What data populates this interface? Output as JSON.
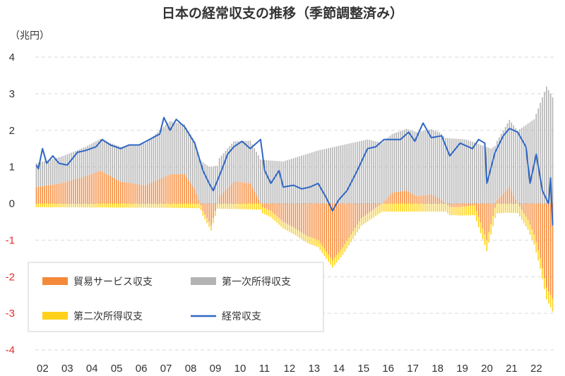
{
  "chart_data": {
    "type": "bar+line",
    "title": "日本の経常収支の推移（季節調整済み）",
    "unit_label": "（兆円）",
    "ylim": [
      -4,
      4
    ],
    "yticks": [
      4,
      3,
      2,
      1,
      0,
      -1,
      -2,
      -3,
      -4
    ],
    "ytick_labels": [
      "4",
      "3",
      "2",
      "1",
      "0",
      "-1",
      "-2",
      "-3",
      "-4"
    ],
    "negative_tick_color": "#e03030",
    "grid": "horizontal dashed",
    "x_tick_labels": [
      "02",
      "03",
      "04",
      "05",
      "06",
      "07",
      "08",
      "09",
      "10",
      "11",
      "12",
      "13",
      "14",
      "15",
      "16",
      "17",
      "18",
      "19",
      "20",
      "21",
      "22"
    ],
    "x_start_year": 2002,
    "months_per_year": 12,
    "legend_position": "lower-left",
    "colors": {
      "trade": "#f5893a",
      "primary": "#b3b3b3",
      "secondary": "#ffd11a",
      "current": "#2f67c4"
    },
    "series": [
      {
        "name": "貿易サービス収支",
        "type": "stacked-bar",
        "key": "trade",
        "anchors": [
          [
            "2002-01",
            0.45
          ],
          [
            "2003-01",
            0.55
          ],
          [
            "2004-01",
            0.75
          ],
          [
            "2004-08",
            0.9
          ],
          [
            "2005-06",
            0.6
          ],
          [
            "2006-06",
            0.5
          ],
          [
            "2007-06",
            0.8
          ],
          [
            "2008-01",
            0.8
          ],
          [
            "2008-06",
            0.4
          ],
          [
            "2008-10",
            -0.2
          ],
          [
            "2009-02",
            -0.6
          ],
          [
            "2009-06",
            0.2
          ],
          [
            "2010-01",
            0.6
          ],
          [
            "2010-09",
            0.55
          ],
          [
            "2011-03",
            -0.1
          ],
          [
            "2011-07",
            -0.2
          ],
          [
            "2012-01",
            -0.5
          ],
          [
            "2012-06",
            -0.65
          ],
          [
            "2013-01",
            -0.9
          ],
          [
            "2013-06",
            -1.0
          ],
          [
            "2014-01",
            -1.55
          ],
          [
            "2014-06",
            -1.2
          ],
          [
            "2014-10",
            -0.85
          ],
          [
            "2015-03",
            -0.4
          ],
          [
            "2015-08",
            -0.2
          ],
          [
            "2016-01",
            0.0
          ],
          [
            "2016-06",
            0.3
          ],
          [
            "2017-01",
            0.35
          ],
          [
            "2017-06",
            0.2
          ],
          [
            "2018-01",
            0.25
          ],
          [
            "2018-05",
            0.15
          ],
          [
            "2018-10",
            -0.1
          ],
          [
            "2019-03",
            -0.1
          ],
          [
            "2019-10",
            -0.05
          ],
          [
            "2020-04",
            -1.0
          ],
          [
            "2020-09",
            0.1
          ],
          [
            "2021-03",
            0.45
          ],
          [
            "2021-07",
            0.0
          ],
          [
            "2021-12",
            -0.45
          ],
          [
            "2022-03",
            -0.85
          ],
          [
            "2022-06",
            -1.5
          ],
          [
            "2022-09",
            -2.3
          ],
          [
            "2022-12",
            -2.6
          ]
        ]
      },
      {
        "name": "第一次所得収支",
        "type": "stacked-bar",
        "key": "primary",
        "anchors": [
          [
            "2002-01",
            0.65
          ],
          [
            "2004-01",
            0.8
          ],
          [
            "2005-06",
            0.95
          ],
          [
            "2006-06",
            1.15
          ],
          [
            "2007-06",
            1.45
          ],
          [
            "2008-06",
            1.3
          ],
          [
            "2009-01",
            1.0
          ],
          [
            "2010-01",
            1.1
          ],
          [
            "2011-01",
            1.2
          ],
          [
            "2012-01",
            1.15
          ],
          [
            "2013-06",
            1.45
          ],
          [
            "2014-06",
            1.6
          ],
          [
            "2015-06",
            1.75
          ],
          [
            "2016-06",
            1.6
          ],
          [
            "2017-06",
            1.75
          ],
          [
            "2018-06",
            1.8
          ],
          [
            "2019-06",
            1.75
          ],
          [
            "2020-06",
            1.5
          ],
          [
            "2021-06",
            1.95
          ],
          [
            "2022-03",
            2.3
          ],
          [
            "2022-09",
            3.2
          ],
          [
            "2022-12",
            2.9
          ]
        ]
      },
      {
        "name": "第二次所得収支",
        "type": "stacked-bar",
        "key": "secondary",
        "anchors": [
          [
            "2002-01",
            -0.1
          ],
          [
            "2008-01",
            -0.12
          ],
          [
            "2012-01",
            -0.18
          ],
          [
            "2014-01",
            -0.2
          ],
          [
            "2016-01",
            -0.22
          ],
          [
            "2019-01",
            -0.22
          ],
          [
            "2020-04",
            -0.3
          ],
          [
            "2021-01",
            -0.25
          ],
          [
            "2022-06",
            -0.28
          ],
          [
            "2022-12",
            -0.35
          ]
        ]
      },
      {
        "name": "経常収支",
        "type": "line",
        "key": "current",
        "anchors": [
          [
            "2002-01",
            1.05
          ],
          [
            "2002-02",
            0.95
          ],
          [
            "2002-04",
            1.5
          ],
          [
            "2002-06",
            1.1
          ],
          [
            "2002-09",
            1.3
          ],
          [
            "2002-12",
            1.1
          ],
          [
            "2003-04",
            1.05
          ],
          [
            "2003-09",
            1.4
          ],
          [
            "2004-01",
            1.45
          ],
          [
            "2004-06",
            1.55
          ],
          [
            "2004-09",
            1.75
          ],
          [
            "2005-01",
            1.6
          ],
          [
            "2005-06",
            1.5
          ],
          [
            "2005-10",
            1.6
          ],
          [
            "2006-03",
            1.6
          ],
          [
            "2006-08",
            1.75
          ],
          [
            "2007-01",
            1.9
          ],
          [
            "2007-03",
            2.35
          ],
          [
            "2007-06",
            2.0
          ],
          [
            "2007-09",
            2.3
          ],
          [
            "2008-01",
            2.1
          ],
          [
            "2008-06",
            1.65
          ],
          [
            "2008-10",
            0.9
          ],
          [
            "2009-01",
            0.55
          ],
          [
            "2009-03",
            0.35
          ],
          [
            "2009-07",
            0.9
          ],
          [
            "2009-10",
            1.35
          ],
          [
            "2010-01",
            1.55
          ],
          [
            "2010-05",
            1.7
          ],
          [
            "2010-09",
            1.5
          ],
          [
            "2011-02",
            1.75
          ],
          [
            "2011-04",
            0.9
          ],
          [
            "2011-07",
            0.55
          ],
          [
            "2011-11",
            0.9
          ],
          [
            "2012-01",
            0.45
          ],
          [
            "2012-06",
            0.5
          ],
          [
            "2012-10",
            0.4
          ],
          [
            "2013-02",
            0.45
          ],
          [
            "2013-06",
            0.55
          ],
          [
            "2013-10",
            0.15
          ],
          [
            "2014-01",
            -0.2
          ],
          [
            "2014-04",
            0.1
          ],
          [
            "2014-08",
            0.35
          ],
          [
            "2015-01",
            0.9
          ],
          [
            "2015-06",
            1.5
          ],
          [
            "2015-10",
            1.55
          ],
          [
            "2016-02",
            1.75
          ],
          [
            "2016-06",
            1.75
          ],
          [
            "2016-10",
            1.75
          ],
          [
            "2017-02",
            1.95
          ],
          [
            "2017-05",
            1.7
          ],
          [
            "2017-09",
            2.2
          ],
          [
            "2018-01",
            1.8
          ],
          [
            "2018-06",
            1.85
          ],
          [
            "2018-10",
            1.3
          ],
          [
            "2019-03",
            1.65
          ],
          [
            "2019-09",
            1.5
          ],
          [
            "2019-12",
            1.75
          ],
          [
            "2020-03",
            1.65
          ],
          [
            "2020-04",
            0.55
          ],
          [
            "2020-08",
            1.4
          ],
          [
            "2020-12",
            1.85
          ],
          [
            "2021-03",
            2.05
          ],
          [
            "2021-07",
            1.95
          ],
          [
            "2021-11",
            1.55
          ],
          [
            "2022-01",
            0.55
          ],
          [
            "2022-04",
            1.35
          ],
          [
            "2022-07",
            0.35
          ],
          [
            "2022-10",
            0.0
          ],
          [
            "2022-11",
            0.7
          ],
          [
            "2022-12",
            -0.6
          ]
        ]
      }
    ]
  }
}
